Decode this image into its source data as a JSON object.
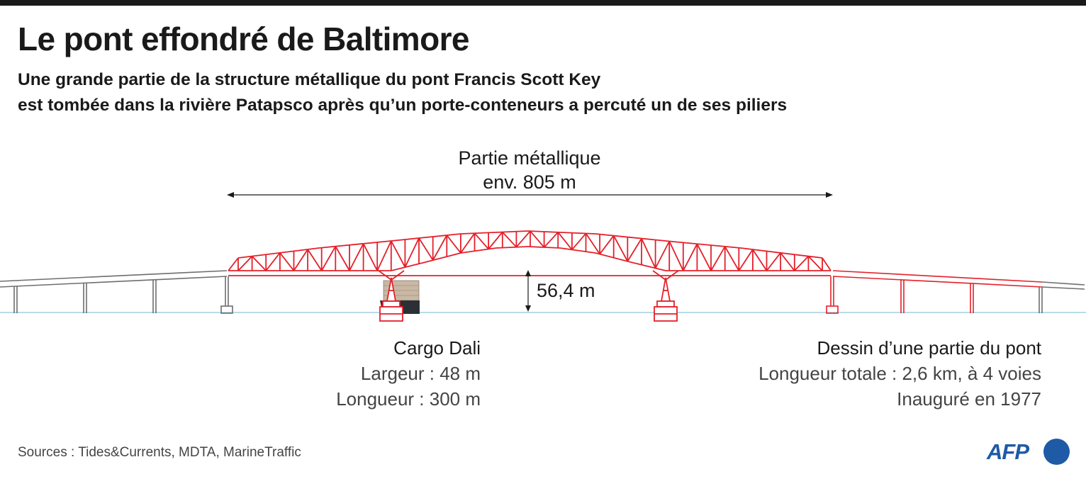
{
  "header": {
    "title": "Le pont effondré de Baltimore",
    "subtitle_line1": "Une grande partie de la structure métallique du pont Francis Scott Key",
    "subtitle_line2": "est tombée dans la rivière Patapsco après qu’un porte-conteneurs a percuté un de ses piliers"
  },
  "diagram": {
    "span_label_line1": "Partie métallique",
    "span_label_line2": "env. 805 m",
    "clearance_label": "56,4 m",
    "colors": {
      "truss": "#e4202a",
      "approach": "#6e6e6e",
      "water": "#b9dbe8",
      "ship_hull": "#2b2f36",
      "containers": "#c8b8a4",
      "text": "#1a1a1a"
    }
  },
  "ship_info": {
    "name": "Cargo Dali",
    "width": "Largeur : 48 m",
    "length": "Longueur : 300 m"
  },
  "bridge_info": {
    "title": "Dessin d’une partie du pont",
    "length": "Longueur totale : 2,6 km, à 4 voies",
    "inaugurated": "Inauguré en 1977"
  },
  "footer": {
    "sources": "Sources : Tides&Currents, MDTA, MarineTraffic",
    "logo_text": "AFP"
  }
}
